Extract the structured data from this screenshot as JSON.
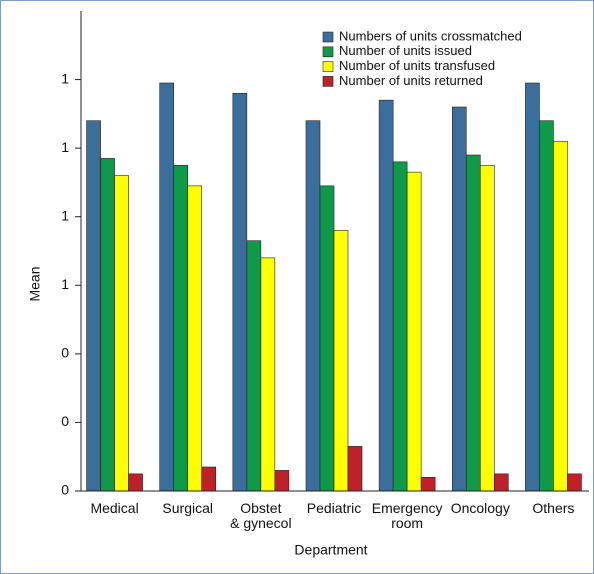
{
  "chart_data": {
    "type": "bar",
    "x_label": "Department",
    "y_label": "Mean",
    "categories": [
      "Medical",
      "Surgical",
      "Obstet\n& gynecol",
      "Pediatric",
      "Emergency\nroom",
      "Oncology",
      "Others"
    ],
    "series": [
      {
        "name": "Numbers of units crossmatched",
        "color": "#3c6e9c",
        "values": [
          1.08,
          1.19,
          1.16,
          1.08,
          1.14,
          1.12,
          1.19
        ]
      },
      {
        "name": "Number of units issued",
        "color": "#0e9a48",
        "values": [
          0.97,
          0.95,
          0.73,
          0.89,
          0.96,
          0.98,
          1.08
        ]
      },
      {
        "name": "Number of units transfused",
        "color": "#ffff00",
        "values": [
          0.92,
          0.89,
          0.68,
          0.76,
          0.93,
          0.95,
          1.02
        ]
      },
      {
        "name": "Number of units returned",
        "color": "#c0202a",
        "values": [
          0.05,
          0.07,
          0.06,
          0.13,
          0.04,
          0.05,
          0.05
        ]
      }
    ],
    "ylim": [
      0,
      1.4
    ],
    "yticks": [
      {
        "value": 0,
        "label": "0"
      },
      {
        "value": 0.2,
        "label": "0"
      },
      {
        "value": 0.4,
        "label": "0"
      },
      {
        "value": 0.6,
        "label": "1"
      },
      {
        "value": 0.8,
        "label": "1"
      },
      {
        "value": 1.0,
        "label": "1"
      },
      {
        "value": 1.2,
        "label": "1"
      }
    ],
    "legend": "top-right"
  }
}
